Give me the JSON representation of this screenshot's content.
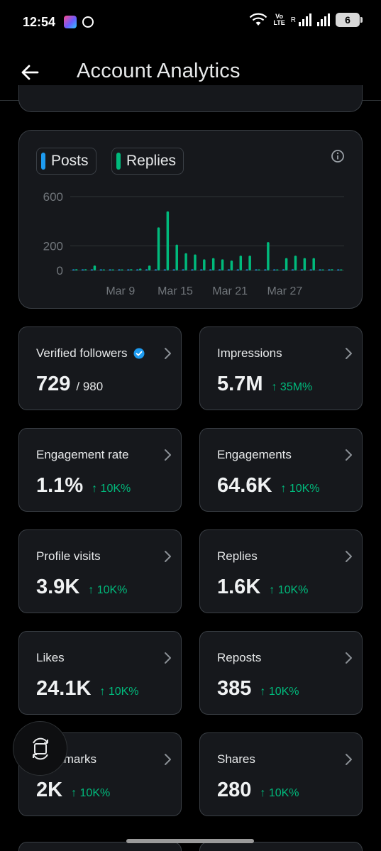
{
  "status_bar": {
    "time": "12:54",
    "network_top": "Vo",
    "network_bottom": "LTE",
    "roaming": "R",
    "battery": "6"
  },
  "header": {
    "title": "Account Analytics"
  },
  "chart": {
    "legend": [
      {
        "label": "Posts",
        "color": "#1d9bf0"
      },
      {
        "label": "Replies",
        "color": "#00ba7c"
      }
    ]
  },
  "chart_data": {
    "type": "bar",
    "categories": [
      "Mar 4",
      "Mar 5",
      "Mar 6",
      "Mar 7",
      "Mar 8",
      "Mar 9",
      "Mar 10",
      "Mar 11",
      "Mar 12",
      "Mar 13",
      "Mar 14",
      "Mar 15",
      "Mar 16",
      "Mar 17",
      "Mar 18",
      "Mar 19",
      "Mar 20",
      "Mar 21",
      "Mar 22",
      "Mar 23",
      "Mar 24",
      "Mar 25",
      "Mar 26",
      "Mar 27",
      "Mar 28",
      "Mar 29",
      "Mar 30",
      "Mar 31",
      "Apr 1",
      "Apr 2"
    ],
    "series": [
      {
        "name": "Posts",
        "color": "#1d9bf0",
        "values": [
          3,
          5,
          4,
          2,
          2,
          3,
          2,
          3,
          2,
          5,
          8,
          6,
          5,
          4,
          3,
          4,
          3,
          2,
          3,
          3,
          2,
          3,
          2,
          5,
          4,
          3,
          2,
          3,
          2,
          2
        ]
      },
      {
        "name": "Replies",
        "color": "#00ba7c",
        "values": [
          10,
          10,
          40,
          0,
          5,
          5,
          10,
          15,
          40,
          350,
          480,
          210,
          140,
          130,
          90,
          100,
          90,
          80,
          120,
          120,
          0,
          230,
          0,
          100,
          120,
          100,
          100,
          0,
          10,
          5
        ]
      }
    ],
    "y_ticks": [
      0,
      200,
      600
    ],
    "x_ticks": [
      "Mar 9",
      "Mar 15",
      "Mar 21",
      "Mar 27"
    ],
    "ylim": [
      0,
      600
    ],
    "grid": true
  },
  "metrics": [
    {
      "label": "Verified followers",
      "value": "729",
      "sub": "/ 980",
      "change": "",
      "verified": true
    },
    {
      "label": "Impressions",
      "value": "5.7M",
      "sub": "",
      "change": "↑ 35M%"
    },
    {
      "label": "Engagement rate",
      "value": "1.1%",
      "sub": "",
      "change": "↑ 10K%"
    },
    {
      "label": "Engagements",
      "value": "64.6K",
      "sub": "",
      "change": "↑ 10K%"
    },
    {
      "label": "Profile visits",
      "value": "3.9K",
      "sub": "",
      "change": "↑ 10K%"
    },
    {
      "label": "Replies",
      "value": "1.6K",
      "sub": "",
      "change": "↑ 10K%"
    },
    {
      "label": "Likes",
      "value": "24.1K",
      "sub": "",
      "change": "↑ 10K%"
    },
    {
      "label": "Reposts",
      "value": "385",
      "sub": "",
      "change": "↑ 10K%"
    },
    {
      "label": "Bookmarks",
      "value": "2K",
      "sub": "",
      "change": "↑ 10K%"
    },
    {
      "label": "Shares",
      "value": "280",
      "sub": "",
      "change": "↑ 10K%"
    }
  ],
  "colors": {
    "accent": "#00ba7c",
    "posts": "#1d9bf0",
    "verified": "#1d9bf0"
  }
}
